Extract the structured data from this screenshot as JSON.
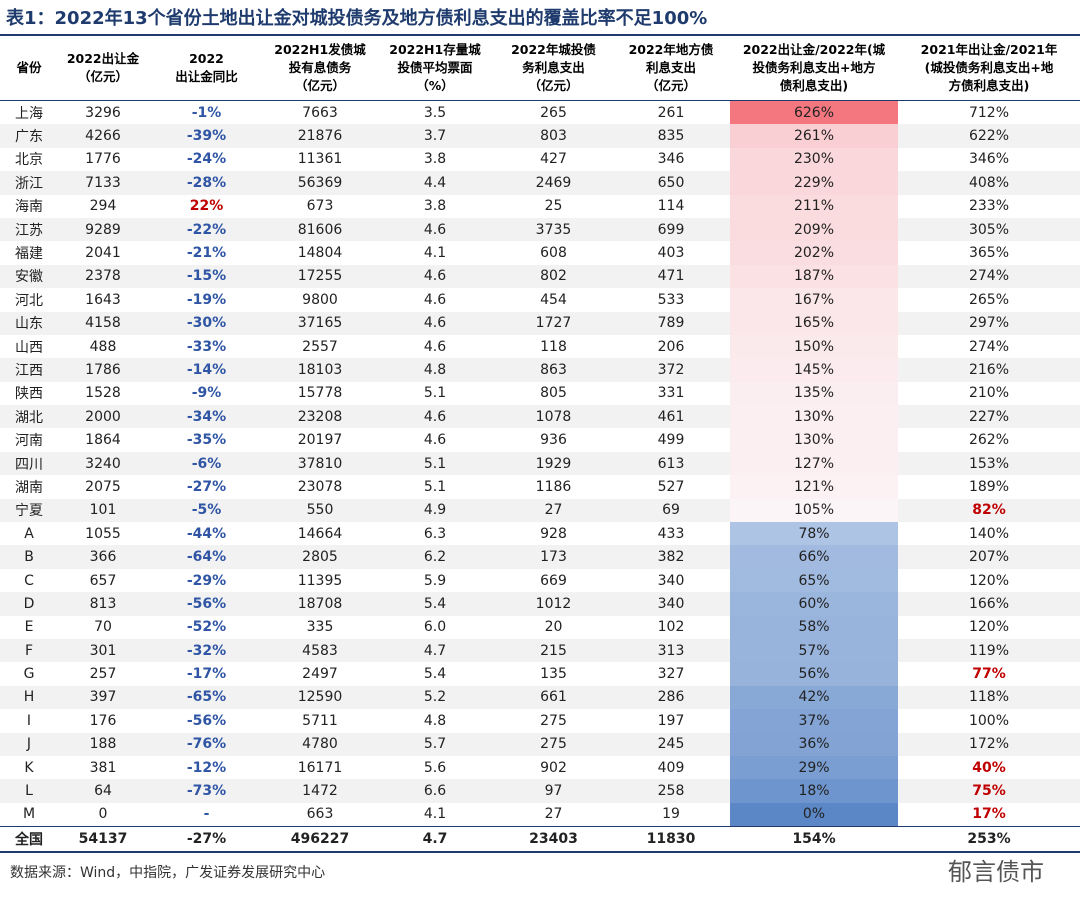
{
  "title": "表1：2022年13个省份土地出让金对城投债务及地方债利息支出的覆盖比率不足100%",
  "table": {
    "header": [
      [
        "省份"
      ],
      [
        "2022出让金",
        "（亿元）"
      ],
      [
        "2022",
        "出让金同比"
      ],
      [
        "2022H1发债城",
        "投有息债务",
        "（亿元）"
      ],
      [
        "2022H1存量城",
        "投债平均票面",
        "（%）"
      ],
      [
        "2022年城投债",
        "务利息支出",
        "（亿元）"
      ],
      [
        "2022年地方债",
        "利息支出",
        "（亿元）"
      ],
      [
        "2022出让金/2022年(城",
        "投债务利息支出+地方",
        "债利息支出)"
      ],
      [
        "2021年出让金/2021年",
        "(城投债务利息支出+地",
        "方债利息支出)"
      ]
    ],
    "rows": [
      [
        "上海",
        "3296",
        "-1%",
        "7663",
        "3.5",
        "265",
        "261",
        "626%",
        "712%"
      ],
      [
        "广东",
        "4266",
        "-39%",
        "21876",
        "3.7",
        "803",
        "835",
        "261%",
        "622%"
      ],
      [
        "北京",
        "1776",
        "-24%",
        "11361",
        "3.8",
        "427",
        "346",
        "230%",
        "346%"
      ],
      [
        "浙江",
        "7133",
        "-28%",
        "56369",
        "4.4",
        "2469",
        "650",
        "229%",
        "408%"
      ],
      [
        "海南",
        "294",
        "22%",
        "673",
        "3.8",
        "25",
        "114",
        "211%",
        "233%"
      ],
      [
        "江苏",
        "9289",
        "-22%",
        "81606",
        "4.6",
        "3735",
        "699",
        "209%",
        "305%"
      ],
      [
        "福建",
        "2041",
        "-21%",
        "14804",
        "4.1",
        "608",
        "403",
        "202%",
        "365%"
      ],
      [
        "安徽",
        "2378",
        "-15%",
        "17255",
        "4.6",
        "802",
        "471",
        "187%",
        "274%"
      ],
      [
        "河北",
        "1643",
        "-19%",
        "9800",
        "4.6",
        "454",
        "533",
        "167%",
        "265%"
      ],
      [
        "山东",
        "4158",
        "-30%",
        "37165",
        "4.6",
        "1727",
        "789",
        "165%",
        "297%"
      ],
      [
        "山西",
        "488",
        "-33%",
        "2557",
        "4.6",
        "118",
        "206",
        "150%",
        "274%"
      ],
      [
        "江西",
        "1786",
        "-14%",
        "18103",
        "4.8",
        "863",
        "372",
        "145%",
        "216%"
      ],
      [
        "陕西",
        "1528",
        "-9%",
        "15778",
        "5.1",
        "805",
        "331",
        "135%",
        "210%"
      ],
      [
        "湖北",
        "2000",
        "-34%",
        "23208",
        "4.6",
        "1078",
        "461",
        "130%",
        "227%"
      ],
      [
        "河南",
        "1864",
        "-35%",
        "20197",
        "4.6",
        "936",
        "499",
        "130%",
        "262%"
      ],
      [
        "四川",
        "3240",
        "-6%",
        "37810",
        "5.1",
        "1929",
        "613",
        "127%",
        "153%"
      ],
      [
        "湖南",
        "2075",
        "-27%",
        "23078",
        "5.1",
        "1186",
        "527",
        "121%",
        "189%"
      ],
      [
        "宁夏",
        "101",
        "-5%",
        "550",
        "4.9",
        "27",
        "69",
        "105%",
        "82%"
      ],
      [
        "A",
        "1055",
        "-44%",
        "14664",
        "6.3",
        "928",
        "433",
        "78%",
        "140%"
      ],
      [
        "B",
        "366",
        "-64%",
        "2805",
        "6.2",
        "173",
        "382",
        "66%",
        "207%"
      ],
      [
        "C",
        "657",
        "-29%",
        "11395",
        "5.9",
        "669",
        "340",
        "65%",
        "120%"
      ],
      [
        "D",
        "813",
        "-56%",
        "18708",
        "5.4",
        "1012",
        "340",
        "60%",
        "166%"
      ],
      [
        "E",
        "70",
        "-52%",
        "335",
        "6.0",
        "20",
        "102",
        "58%",
        "120%"
      ],
      [
        "F",
        "301",
        "-32%",
        "4583",
        "4.7",
        "215",
        "313",
        "57%",
        "119%"
      ],
      [
        "G",
        "257",
        "-17%",
        "2497",
        "5.4",
        "135",
        "327",
        "56%",
        "77%"
      ],
      [
        "H",
        "397",
        "-65%",
        "12590",
        "5.2",
        "661",
        "286",
        "42%",
        "118%"
      ],
      [
        "I",
        "176",
        "-56%",
        "5711",
        "4.8",
        "275",
        "197",
        "37%",
        "100%"
      ],
      [
        "J",
        "188",
        "-76%",
        "4780",
        "5.7",
        "275",
        "245",
        "36%",
        "172%"
      ],
      [
        "K",
        "381",
        "-12%",
        "16171",
        "5.6",
        "902",
        "409",
        "29%",
        "40%"
      ],
      [
        "L",
        "64",
        "-73%",
        "1472",
        "6.6",
        "97",
        "258",
        "18%",
        "75%"
      ],
      [
        "M",
        "0",
        "-",
        "663",
        "4.1",
        "27",
        "19",
        "0%",
        "17%"
      ],
      [
        "全国",
        "54137",
        "-27%",
        "496227",
        "4.7",
        "23403",
        "11830",
        "154%",
        "253%"
      ]
    ]
  },
  "source": "数据来源：Wind，中指院，广发证券发展研究中心",
  "watermark": "郁言债市"
}
